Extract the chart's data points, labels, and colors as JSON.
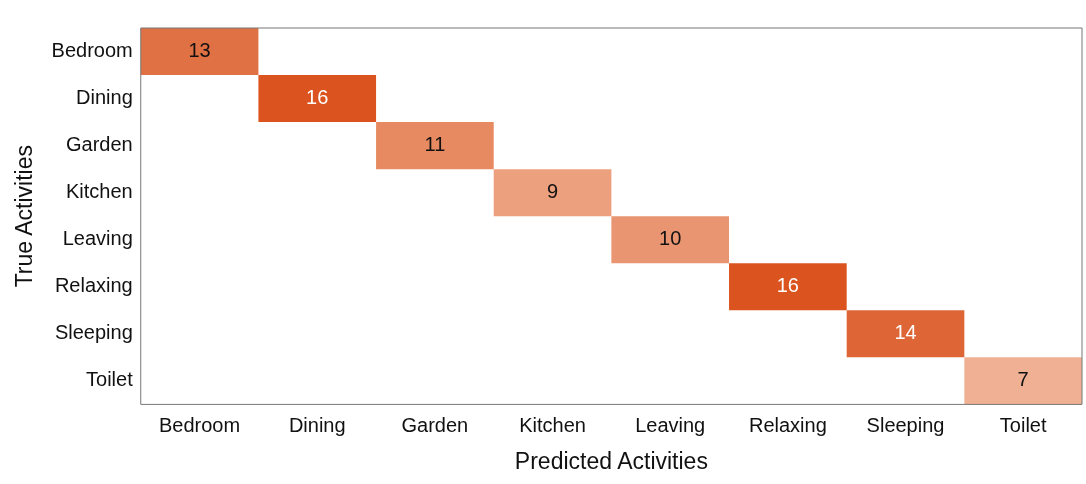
{
  "chart_data": {
    "type": "heatmap",
    "xlabel": "Predicted Activities",
    "ylabel": "True Activities",
    "categories": [
      "Bedroom",
      "Dining",
      "Garden",
      "Kitchen",
      "Leaving",
      "Relaxing",
      "Sleeping",
      "Toilet"
    ],
    "y_categories": [
      "Bedroom",
      "Dining",
      "Garden",
      "Kitchen",
      "Leaving",
      "Relaxing",
      "Sleeping",
      "Toilet"
    ],
    "cells": [
      [
        13,
        null,
        null,
        null,
        null,
        null,
        null,
        null
      ],
      [
        null,
        16,
        null,
        null,
        null,
        null,
        null,
        null
      ],
      [
        null,
        null,
        11,
        null,
        null,
        null,
        null,
        null
      ],
      [
        null,
        null,
        null,
        9,
        null,
        null,
        null,
        null
      ],
      [
        null,
        null,
        null,
        null,
        10,
        null,
        null,
        null
      ],
      [
        null,
        null,
        null,
        null,
        null,
        16,
        null,
        null
      ],
      [
        null,
        null,
        null,
        null,
        null,
        null,
        14,
        null
      ],
      [
        null,
        null,
        null,
        null,
        null,
        null,
        null,
        7
      ]
    ],
    "colors": [
      [
        "#e07144",
        null,
        null,
        null,
        null,
        null,
        null,
        null
      ],
      [
        null,
        "#db531e",
        null,
        null,
        null,
        null,
        null,
        null
      ],
      [
        null,
        null,
        "#e78a62",
        null,
        null,
        null,
        null,
        null
      ],
      [
        null,
        null,
        null,
        "#eca07e",
        null,
        null,
        null,
        null
      ],
      [
        null,
        null,
        null,
        null,
        "#e99572",
        null,
        null,
        null
      ],
      [
        null,
        null,
        null,
        null,
        null,
        "#db531e",
        null,
        null
      ],
      [
        null,
        null,
        null,
        null,
        null,
        null,
        "#de6636",
        null
      ],
      [
        null,
        null,
        null,
        null,
        null,
        null,
        null,
        "#efb094"
      ]
    ],
    "data_labels": true,
    "grid": false,
    "legend": false
  }
}
